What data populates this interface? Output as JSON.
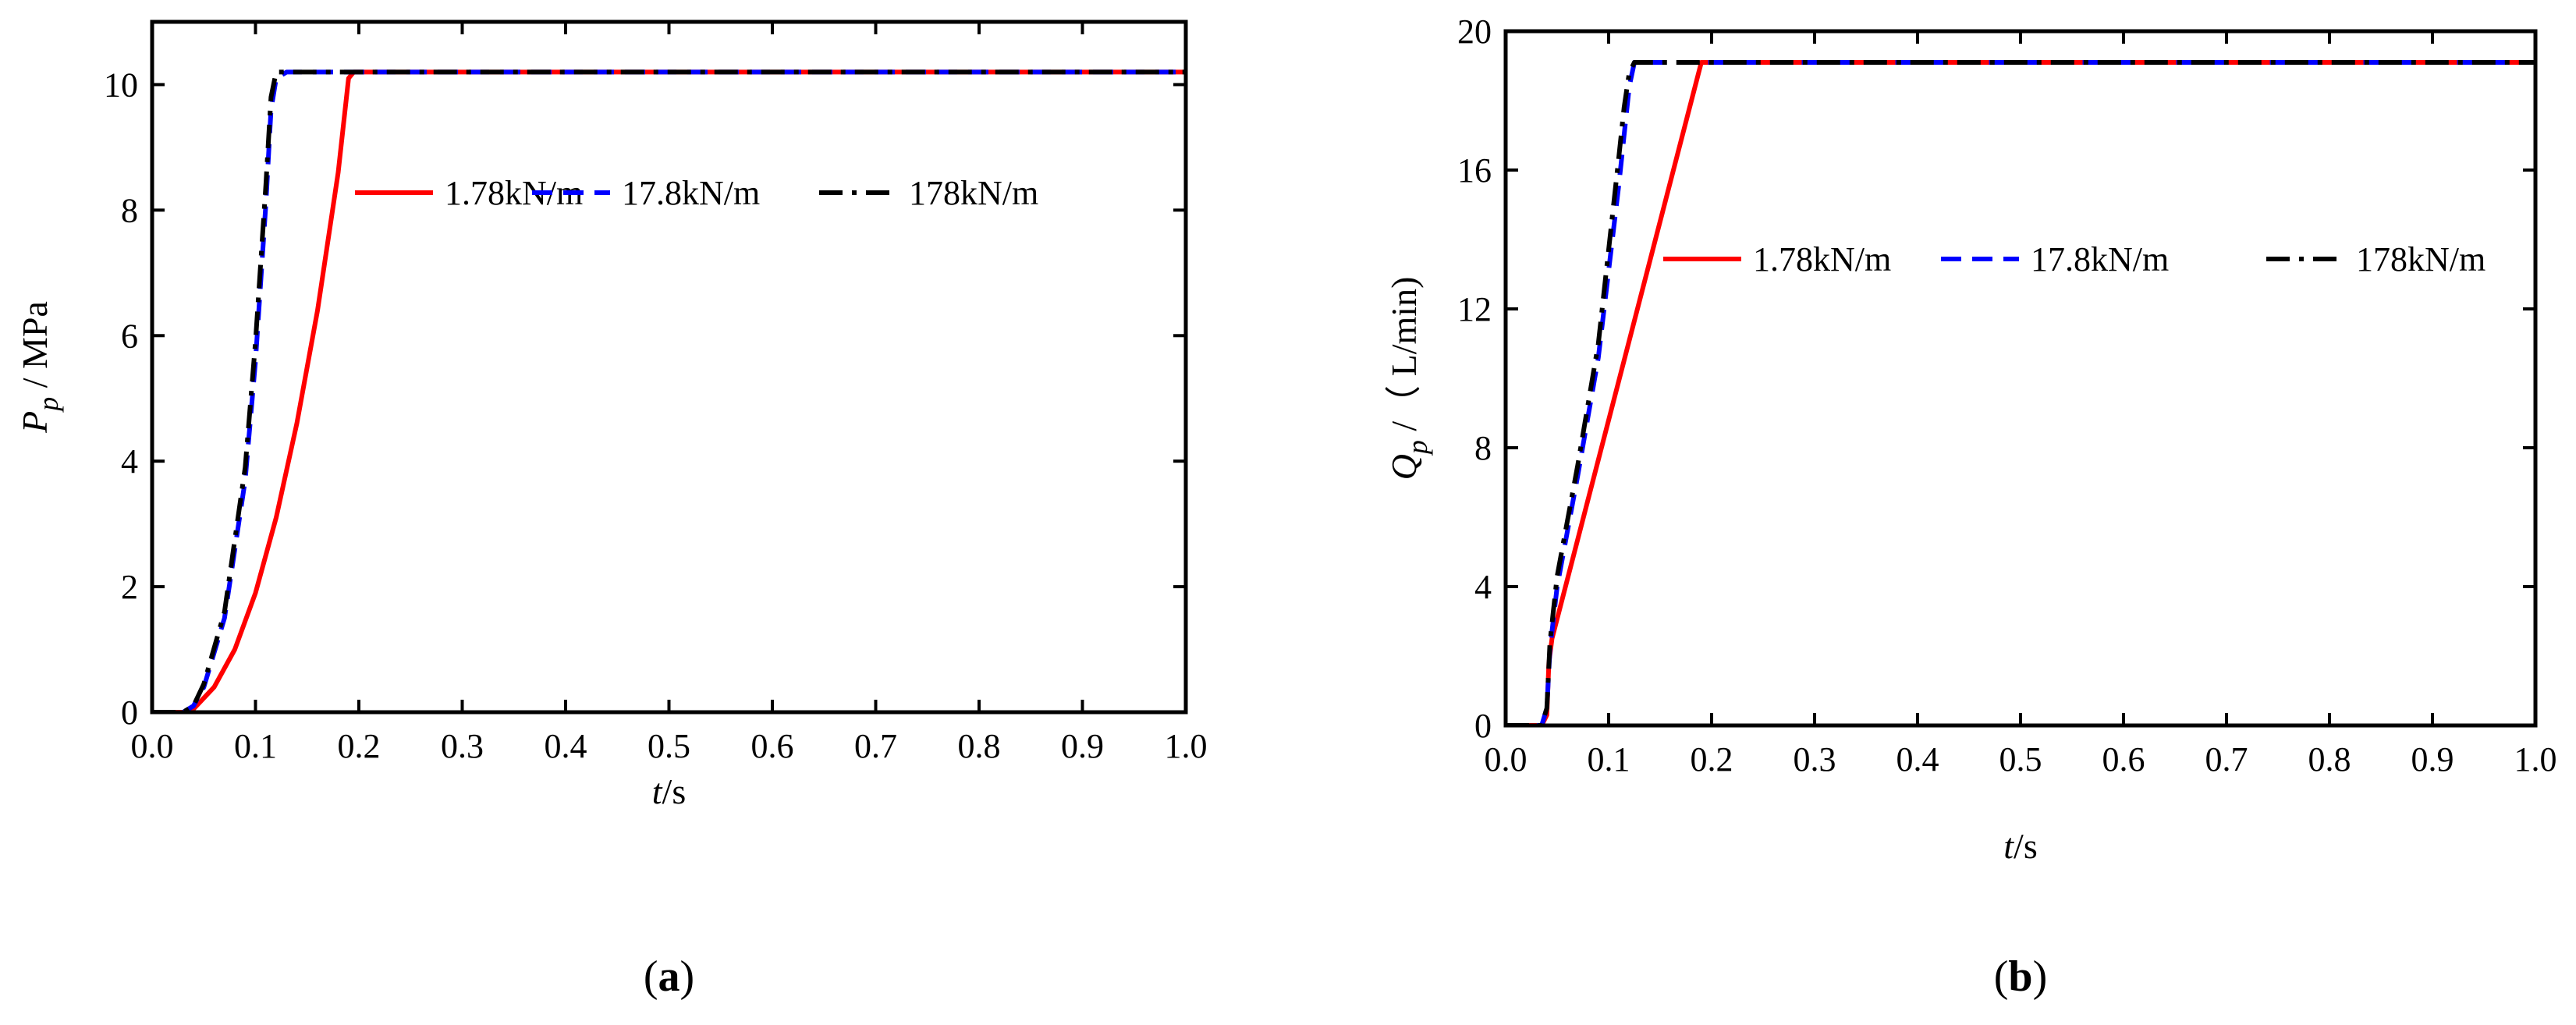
{
  "figure": {
    "panels": [
      {
        "label": "(a)",
        "label_parts": [
          "(",
          "a",
          ")"
        ]
      },
      {
        "label": "(b)",
        "label_parts": [
          "(",
          "b",
          ")"
        ]
      }
    ]
  },
  "chart_data": [
    {
      "type": "line",
      "title": "",
      "xlabel": "t/s",
      "xlabel_parts": {
        "var": "t",
        "unit": "/s"
      },
      "ylabel": "Pp / MPa",
      "ylabel_parts": {
        "var": "P",
        "sub": "p",
        "unit": " / MPa"
      },
      "xlim": [
        0.0,
        1.0
      ],
      "ylim": [
        0,
        11
      ],
      "xticks": [
        0.0,
        0.1,
        0.2,
        0.3,
        0.4,
        0.5,
        0.6,
        0.7,
        0.8,
        0.9,
        1.0
      ],
      "xtick_labels": [
        "0.0",
        "0.1",
        "0.2",
        "0.3",
        "0.4",
        "0.5",
        "0.6",
        "0.7",
        "0.8",
        "0.9",
        "1.0"
      ],
      "yticks": [
        0,
        2,
        4,
        6,
        8,
        10
      ],
      "ytick_labels": [
        "0",
        "2",
        "4",
        "6",
        "8",
        "10"
      ],
      "legend_position": "center-right",
      "series": [
        {
          "name": "1.78kN/m",
          "color": "#ff0000",
          "dash": "solid",
          "x": [
            0.0,
            0.03,
            0.04,
            0.06,
            0.08,
            0.1,
            0.12,
            0.14,
            0.16,
            0.18,
            0.19,
            0.195,
            1.0
          ],
          "y": [
            0,
            0,
            0.05,
            0.4,
            1.0,
            1.9,
            3.1,
            4.6,
            6.4,
            8.6,
            10.1,
            10.2,
            10.2
          ]
        },
        {
          "name": "17.8kN/m",
          "color": "#0000ff",
          "dash": "dash",
          "x": [
            0.0,
            0.03,
            0.04,
            0.05,
            0.07,
            0.09,
            0.1,
            0.11,
            0.115,
            0.12,
            0.13,
            1.0
          ],
          "y": [
            0,
            0,
            0.1,
            0.4,
            1.5,
            3.7,
            5.6,
            8.1,
            9.6,
            10.1,
            10.2,
            10.2
          ]
        },
        {
          "name": "178kN/m",
          "color": "#000000",
          "dash": "dashdot",
          "x": [
            0.0,
            0.03,
            0.04,
            0.05,
            0.07,
            0.09,
            0.1,
            0.11,
            0.115,
            0.12,
            0.13,
            1.0
          ],
          "y": [
            0,
            0,
            0.1,
            0.45,
            1.6,
            3.9,
            5.9,
            8.4,
            9.8,
            10.2,
            10.2,
            10.2
          ]
        }
      ]
    },
    {
      "type": "line",
      "title": "",
      "xlabel": "t/s",
      "xlabel_parts": {
        "var": "t",
        "unit": "/s"
      },
      "ylabel": "Qp /（ L/min)",
      "ylabel_parts": {
        "var": "Q",
        "sub": "p",
        "unit": " /（ L/min)"
      },
      "xlim": [
        0.0,
        1.0
      ],
      "ylim": [
        0,
        20
      ],
      "xticks": [
        0.0,
        0.1,
        0.2,
        0.3,
        0.4,
        0.5,
        0.6,
        0.7,
        0.8,
        0.9,
        1.0
      ],
      "xtick_labels": [
        "0.0",
        "0.1",
        "0.2",
        "0.3",
        "0.4",
        "0.5",
        "0.6",
        "0.7",
        "0.8",
        "0.9",
        "1.0"
      ],
      "yticks": [
        0,
        4,
        8,
        12,
        16,
        20
      ],
      "ytick_labels": [
        "0",
        "4",
        "8",
        "12",
        "16",
        "20"
      ],
      "legend_position": "center-right",
      "series": [
        {
          "name": "1.78kN/m",
          "color": "#ff0000",
          "dash": "solid",
          "x": [
            0.0,
            0.035,
            0.04,
            0.042,
            0.045,
            0.19,
            1.0
          ],
          "y": [
            0,
            0,
            0.3,
            1.8,
            2.5,
            19.1,
            19.1
          ]
        },
        {
          "name": "17.8kN/m",
          "color": "#0000ff",
          "dash": "dash",
          "x": [
            0.0,
            0.035,
            0.04,
            0.043,
            0.05,
            0.07,
            0.09,
            0.11,
            0.12,
            0.125,
            1.0
          ],
          "y": [
            0,
            0,
            0.5,
            2.2,
            4.0,
            7.2,
            10.6,
            15.6,
            18.4,
            19.1,
            19.1
          ]
        },
        {
          "name": "178kN/m",
          "color": "#000000",
          "dash": "dashdot",
          "x": [
            0.0,
            0.035,
            0.04,
            0.043,
            0.05,
            0.07,
            0.09,
            0.11,
            0.115,
            0.12,
            0.125,
            1.0
          ],
          "y": [
            0,
            0,
            0.5,
            2.4,
            4.3,
            7.5,
            11.0,
            16.4,
            17.8,
            18.8,
            19.1,
            19.1
          ]
        }
      ]
    }
  ]
}
